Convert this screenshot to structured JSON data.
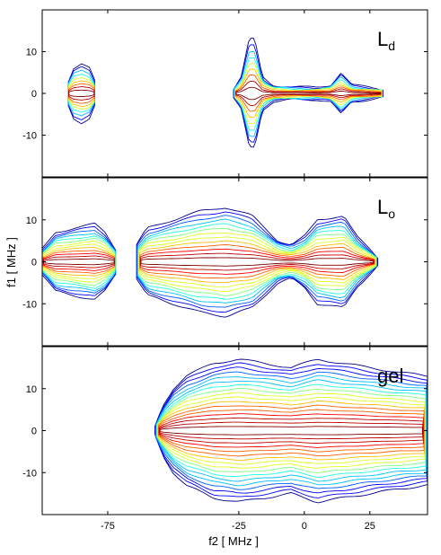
{
  "chart_data": [
    {
      "type": "contour",
      "panel_label": "L",
      "panel_label_sub": "d",
      "xlim": [
        -100,
        47
      ],
      "ylim": [
        20,
        -20
      ],
      "xticks": [
        -75,
        -25,
        0,
        25
      ],
      "yticks": [
        -10,
        0,
        10
      ],
      "levels": 9,
      "regions": [
        {
          "x_start": -90,
          "x_end": -80,
          "width_profile": [
            [
              -90,
              3
            ],
            [
              -88,
              6
            ],
            [
              -85,
              7
            ],
            [
              -82,
              6
            ],
            [
              -80,
              3
            ]
          ]
        },
        {
          "x_start": -27,
          "x_end": 30,
          "width_profile": [
            [
              -27,
              1
            ],
            [
              -24,
              4
            ],
            [
              -21,
              13
            ],
            [
              -19,
              13
            ],
            [
              -16,
              4
            ],
            [
              -12,
              2
            ],
            [
              -5,
              1.5
            ],
            [
              5,
              1.5
            ],
            [
              10,
              2
            ],
            [
              14,
              5
            ],
            [
              18,
              2
            ],
            [
              25,
              1.5
            ],
            [
              30,
              1
            ]
          ]
        }
      ]
    },
    {
      "type": "contour",
      "panel_label": "L",
      "panel_label_sub": "o",
      "xlim": [
        -100,
        47
      ],
      "ylim": [
        20,
        -20
      ],
      "xticks": [
        -75,
        -25,
        0,
        25
      ],
      "yticks": [
        -10,
        0,
        10
      ],
      "levels": 13,
      "regions": [
        {
          "x_start": -100,
          "x_end": -72,
          "width_profile": [
            [
              -100,
              3
            ],
            [
              -95,
              7
            ],
            [
              -88,
              8
            ],
            [
              -80,
              9
            ],
            [
              -76,
              7
            ],
            [
              -72,
              3
            ]
          ]
        },
        {
          "x_start": -64,
          "x_end": 28,
          "width_profile": [
            [
              -64,
              4
            ],
            [
              -60,
              8
            ],
            [
              -50,
              10
            ],
            [
              -40,
              12
            ],
            [
              -30,
              13
            ],
            [
              -20,
              11
            ],
            [
              -10,
              5
            ],
            [
              -5,
              4
            ],
            [
              0,
              6
            ],
            [
              5,
              10
            ],
            [
              15,
              11
            ],
            [
              20,
              6
            ],
            [
              25,
              3
            ],
            [
              28,
              1
            ]
          ]
        }
      ]
    },
    {
      "type": "contour",
      "panel_label": "gel",
      "panel_label_sub": "",
      "xlim": [
        -100,
        47
      ],
      "ylim": [
        20,
        -20
      ],
      "xticks": [
        -75,
        -25,
        0,
        25
      ],
      "yticks": [
        -10,
        0,
        10
      ],
      "levels": 17,
      "regions": [
        {
          "x_start": -57,
          "x_end": 47,
          "width_profile": [
            [
              -57,
              1
            ],
            [
              -54,
              6
            ],
            [
              -50,
              10
            ],
            [
              -45,
              13
            ],
            [
              -35,
              16
            ],
            [
              -25,
              17
            ],
            [
              -15,
              16
            ],
            [
              -5,
              15
            ],
            [
              0,
              16
            ],
            [
              5,
              17
            ],
            [
              15,
              16
            ],
            [
              25,
              15
            ],
            [
              35,
              14
            ],
            [
              47,
              13
            ]
          ]
        }
      ]
    }
  ],
  "xlabel": "f2 [ MHz ]",
  "ylabel": "f1 [ MHz ]",
  "colormap": [
    "#00008f",
    "#0000ff",
    "#0060ff",
    "#00bfff",
    "#20ffdf",
    "#80ff80",
    "#dfff20",
    "#ffbf00",
    "#ff6000",
    "#ff0000",
    "#bf0000",
    "#800000"
  ]
}
